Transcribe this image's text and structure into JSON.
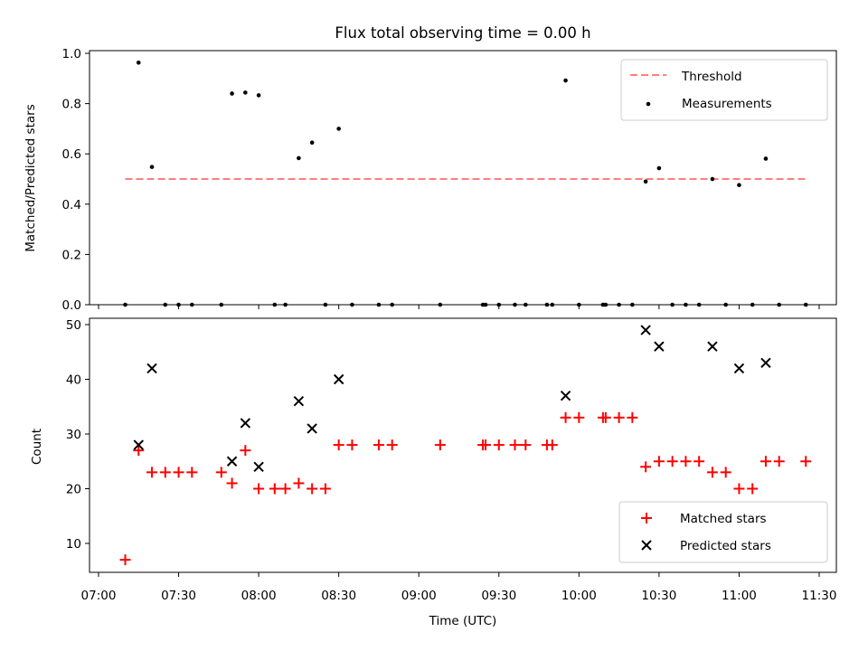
{
  "chart_data": [
    {
      "type": "scatter",
      "title": "Flux total observing time = 0.00 h",
      "xlabel": "",
      "ylabel": "Matched/Predicted stars",
      "xlim": [
        "07:00",
        "11:30"
      ],
      "ylim": [
        0,
        1.0
      ],
      "yticks": [
        "0.0",
        "0.2",
        "0.4",
        "0.6",
        "0.8",
        "1.0"
      ],
      "legend": "top-right",
      "threshold": {
        "name": "Threshold",
        "value": 0.5,
        "x_start": "07:10",
        "x_end": "11:25",
        "color": "#ff8080"
      },
      "series": [
        {
          "name": "Measurements",
          "color": "#000000",
          "points": [
            [
              "07:10",
              0.0
            ],
            [
              "07:15",
              0.963
            ],
            [
              "07:20",
              0.548
            ],
            [
              "07:25",
              0.0
            ],
            [
              "07:30",
              0.0
            ],
            [
              "07:35",
              0.0
            ],
            [
              "07:46",
              0.0
            ],
            [
              "07:50",
              0.84
            ],
            [
              "07:55",
              0.844
            ],
            [
              "08:00",
              0.833
            ],
            [
              "08:06",
              0.0
            ],
            [
              "08:10",
              0.0
            ],
            [
              "08:15",
              0.583
            ],
            [
              "08:20",
              0.645
            ],
            [
              "08:25",
              0.0
            ],
            [
              "08:30",
              0.7
            ],
            [
              "08:35",
              0.0
            ],
            [
              "08:45",
              0.0
            ],
            [
              "08:50",
              0.0
            ],
            [
              "09:08",
              0.0
            ],
            [
              "09:24",
              0.0
            ],
            [
              "09:25",
              0.0
            ],
            [
              "09:30",
              0.0
            ],
            [
              "09:36",
              0.0
            ],
            [
              "09:40",
              0.0
            ],
            [
              "09:48",
              0.0
            ],
            [
              "09:50",
              0.0
            ],
            [
              "09:55",
              0.892
            ],
            [
              "10:00",
              0.0
            ],
            [
              "10:09",
              0.0
            ],
            [
              "10:10",
              0.0
            ],
            [
              "10:15",
              0.0
            ],
            [
              "10:20",
              0.0
            ],
            [
              "10:25",
              0.49
            ],
            [
              "10:30",
              0.543
            ],
            [
              "10:35",
              0.0
            ],
            [
              "10:40",
              0.0
            ],
            [
              "10:45",
              0.0
            ],
            [
              "10:50",
              0.5
            ],
            [
              "10:55",
              0.0
            ],
            [
              "11:00",
              0.476
            ],
            [
              "11:05",
              0.0
            ],
            [
              "11:10",
              0.581
            ],
            [
              "11:15",
              0.0
            ],
            [
              "11:25",
              0.0
            ]
          ]
        }
      ]
    },
    {
      "type": "scatter",
      "title": "",
      "xlabel": "Time (UTC)",
      "ylabel": "Count",
      "xlim": [
        "07:00",
        "11:30"
      ],
      "ylim": [
        5,
        51
      ],
      "yticks": [
        "10",
        "20",
        "30",
        "40",
        "50"
      ],
      "xticks": [
        "07:00",
        "07:30",
        "08:00",
        "08:30",
        "09:00",
        "09:30",
        "10:00",
        "10:30",
        "11:00",
        "11:30"
      ],
      "legend": "bottom-right",
      "series": [
        {
          "name": "Matched stars",
          "marker": "+",
          "color": "#ff0000",
          "points": [
            [
              "07:10",
              7
            ],
            [
              "07:15",
              27
            ],
            [
              "07:20",
              23
            ],
            [
              "07:25",
              23
            ],
            [
              "07:30",
              23
            ],
            [
              "07:35",
              23
            ],
            [
              "07:46",
              23
            ],
            [
              "07:50",
              21
            ],
            [
              "07:55",
              27
            ],
            [
              "08:00",
              20
            ],
            [
              "08:06",
              20
            ],
            [
              "08:10",
              20
            ],
            [
              "08:15",
              21
            ],
            [
              "08:20",
              20
            ],
            [
              "08:25",
              20
            ],
            [
              "08:30",
              28
            ],
            [
              "08:35",
              28
            ],
            [
              "08:45",
              28
            ],
            [
              "08:50",
              28
            ],
            [
              "09:08",
              28
            ],
            [
              "09:24",
              28
            ],
            [
              "09:25",
              28
            ],
            [
              "09:30",
              28
            ],
            [
              "09:36",
              28
            ],
            [
              "09:40",
              28
            ],
            [
              "09:48",
              28
            ],
            [
              "09:50",
              28
            ],
            [
              "09:55",
              33
            ],
            [
              "10:00",
              33
            ],
            [
              "10:09",
              33
            ],
            [
              "10:10",
              33
            ],
            [
              "10:15",
              33
            ],
            [
              "10:20",
              33
            ],
            [
              "10:25",
              24
            ],
            [
              "10:30",
              25
            ],
            [
              "10:35",
              25
            ],
            [
              "10:40",
              25
            ],
            [
              "10:45",
              25
            ],
            [
              "10:50",
              23
            ],
            [
              "10:55",
              23
            ],
            [
              "11:00",
              20
            ],
            [
              "11:05",
              20
            ],
            [
              "11:10",
              25
            ],
            [
              "11:15",
              25
            ],
            [
              "11:25",
              25
            ]
          ]
        },
        {
          "name": "Predicted stars",
          "marker": "x",
          "color": "#000000",
          "points": [
            [
              "07:15",
              28
            ],
            [
              "07:20",
              42
            ],
            [
              "07:50",
              25
            ],
            [
              "07:55",
              32
            ],
            [
              "08:00",
              24
            ],
            [
              "08:15",
              36
            ],
            [
              "08:20",
              31
            ],
            [
              "08:30",
              40
            ],
            [
              "09:55",
              37
            ],
            [
              "10:25",
              49
            ],
            [
              "10:30",
              46
            ],
            [
              "10:50",
              46
            ],
            [
              "11:00",
              42
            ],
            [
              "11:10",
              43
            ]
          ]
        }
      ]
    }
  ]
}
